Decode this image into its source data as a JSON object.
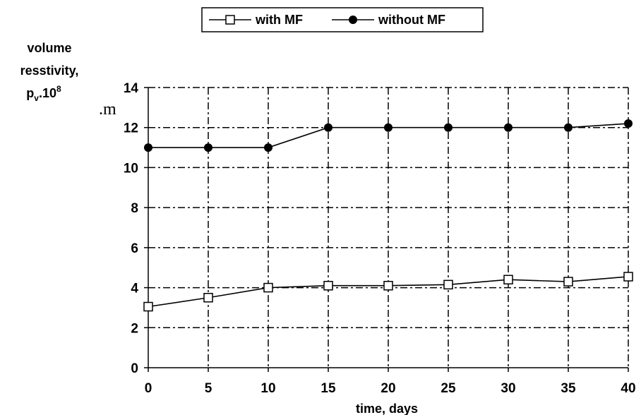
{
  "chart_data": {
    "type": "line",
    "title": "",
    "xlabel": "time, days",
    "ylabel_lines": [
      "volume",
      "resstivity,"
    ],
    "ylabel_symbol": {
      "base": "p",
      "sub": "v",
      "mid": ".10",
      "sup": "8"
    },
    "unit_label": ".m",
    "x": [
      0,
      5,
      10,
      15,
      20,
      25,
      30,
      35,
      40
    ],
    "xlim": [
      0,
      40
    ],
    "ylim": [
      0,
      14
    ],
    "xticks": [
      "0",
      "5",
      "10",
      "15",
      "20",
      "25",
      "30",
      "35",
      "40"
    ],
    "yticks": [
      "0",
      "2",
      "4",
      "6",
      "8",
      "10",
      "12",
      "14"
    ],
    "grid": true,
    "grid_style": "dash-dot",
    "legend_position": "top-center",
    "series": [
      {
        "name": "with MF",
        "marker": "open-square",
        "color": "#000000",
        "values": [
          3.05,
          3.5,
          4.0,
          4.1,
          4.1,
          4.15,
          4.4,
          4.3,
          4.55
        ]
      },
      {
        "name": "without MF",
        "marker": "filled-circle",
        "color": "#000000",
        "values": [
          11.0,
          11.0,
          11.0,
          12.0,
          12.0,
          12.0,
          12.0,
          12.0,
          12.2
        ]
      }
    ]
  }
}
